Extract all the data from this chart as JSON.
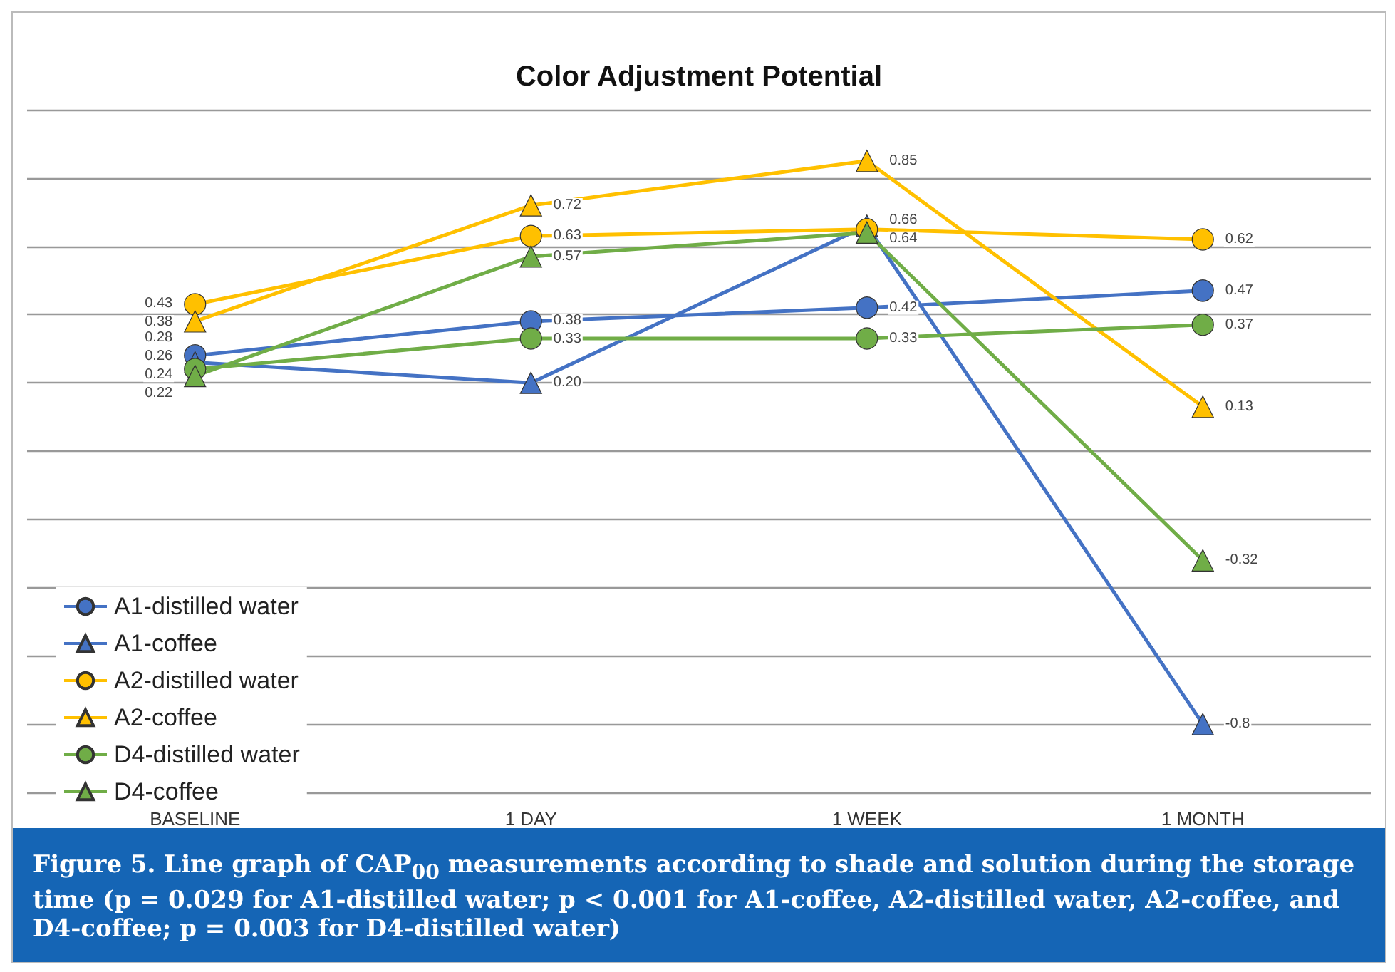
{
  "chart_data": {
    "type": "line",
    "title": "Color Adjustment Potential",
    "categories": [
      "BASELINE",
      "1 DAY",
      "1 WEEK",
      "1 MONTH"
    ],
    "series": [
      {
        "name": "A1-distilled water",
        "color": "#4472c4",
        "marker": "circle",
        "values": [
          0.28,
          0.38,
          0.42,
          0.47
        ],
        "value_labels": [
          "0.28",
          "0.38",
          "0.42",
          "0.47"
        ]
      },
      {
        "name": "A1-coffee",
        "color": "#4472c4",
        "marker": "triangle",
        "values": [
          0.26,
          0.2,
          0.66,
          -0.8
        ],
        "value_labels": [
          "0.26",
          "0.20",
          "0.66",
          "-0.8"
        ]
      },
      {
        "name": "A2-distilled water",
        "color": "#ffc000",
        "marker": "circle",
        "values": [
          0.43,
          0.63,
          0.65,
          0.62
        ],
        "value_labels": [
          "0.43",
          "0.63",
          null,
          "0.62"
        ]
      },
      {
        "name": "A2-coffee",
        "color": "#ffc000",
        "marker": "triangle",
        "values": [
          0.38,
          0.72,
          0.85,
          0.13
        ],
        "value_labels": [
          "0.38",
          "0.72",
          "0.85",
          "0.13"
        ]
      },
      {
        "name": "D4-distilled water",
        "color": "#70ad47",
        "marker": "circle",
        "values": [
          0.24,
          0.33,
          0.33,
          0.37
        ],
        "value_labels": [
          "0.24",
          "0.33",
          "0.33",
          "0.37"
        ]
      },
      {
        "name": "D4-coffee",
        "color": "#70ad47",
        "marker": "triangle",
        "values": [
          0.22,
          0.57,
          0.64,
          -0.32
        ],
        "value_labels": [
          "0.22",
          "0.57",
          "0.64",
          "-0.32"
        ]
      }
    ],
    "ylim": [
      -1,
      1
    ],
    "yticks": [
      {
        "value": -1,
        "label": null
      },
      {
        "value": -0.8,
        "label": null
      },
      {
        "value": -0.6,
        "label": null
      },
      {
        "value": -0.4,
        "label": null
      },
      {
        "value": -0.2,
        "label": null
      },
      {
        "value": 0,
        "label": null
      },
      {
        "value": 0.2,
        "label": null
      },
      {
        "value": 0.4,
        "label": null
      },
      {
        "value": 0.6,
        "label": null
      },
      {
        "value": 0.8,
        "label": null
      },
      {
        "value": 1,
        "label": null
      }
    ],
    "grid": "y",
    "legend": "bottom left",
    "tick_labels": "x",
    "annotations": [
      "Figure 5. Line graph of CAP$_{00}$ measurements according to shade and solution during the storage time (p = 0.029 for A1-distilled water; p < 0.001 for A1-coffee, A2-distilled water, A2-coffee, and D4-coffee; p = 0.003 for D4-distilled water)"
    ]
  }
}
